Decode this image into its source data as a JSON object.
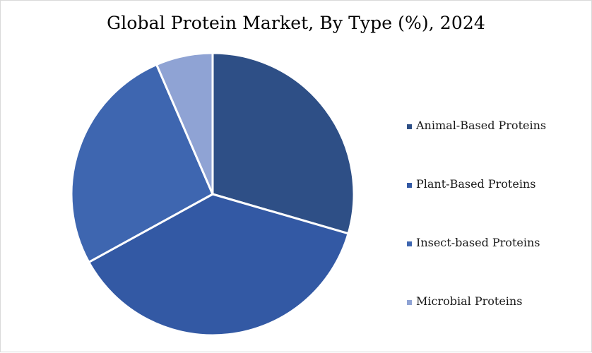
{
  "chart_data": {
    "type": "pie",
    "title": "Global Protein Market, By Type (%), 2024",
    "categories": [
      "Animal-Based Proteins",
      "Plant-Based Proteins",
      "Insect-based Proteins",
      "Microbial Proteins"
    ],
    "values": [
      29.5,
      37.5,
      26.5,
      6.5
    ],
    "colors": [
      "#2e4f86",
      "#3359a4",
      "#3e66b0",
      "#8fa3d4"
    ],
    "legend_position": "right"
  }
}
